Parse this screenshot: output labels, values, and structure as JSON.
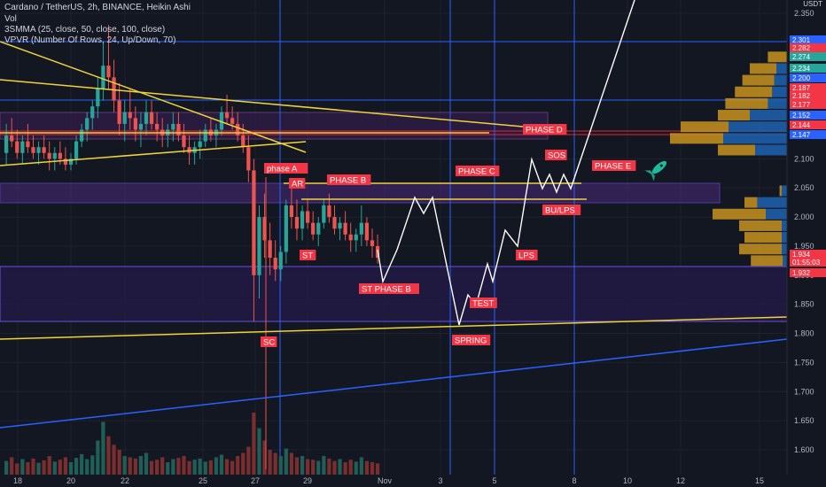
{
  "header": {
    "title": "Cardano / TetherUS, 2h, BINANCE, Heikin Ashi",
    "indicator_1": "Vol",
    "indicator_2": "3SMMA (25, close, 50, close, 100, close)",
    "indicator_3": "VPVR (Number Of Rows, 24, Up/Down, 70)",
    "currency": "USDT"
  },
  "colors": {
    "background": "#131722",
    "grid": "#1e222d",
    "up": "#26a69a",
    "down": "#ef5350",
    "trendline_yellow": "#f0d23c",
    "channel_blue": "#2962ff",
    "zone_purple": "#4b2a7a",
    "label_red": "#f23645",
    "axis_text": "#b2b5be"
  },
  "chart_data": {
    "type": "candlestick",
    "symbol": "ADAUSDT",
    "interval": "2h",
    "exchange": "BINANCE",
    "y_range": [
      1.58,
      2.36
    ],
    "y_ticks": [
      2.35,
      2.1,
      2.05,
      2.0,
      1.95,
      1.9,
      1.85,
      1.8,
      1.75,
      1.7,
      1.65,
      1.6
    ],
    "y_tick_labels": [
      "2.350",
      "2.100",
      "2.050",
      "2.000",
      "1.950",
      "1.900",
      "1.850",
      "1.800",
      "1.750",
      "1.700",
      "1.650",
      "1.600"
    ],
    "x_ticks": [
      "18",
      "20",
      "22",
      "25",
      "27",
      "29",
      "Nov",
      "3",
      "5",
      "8",
      "10",
      "12",
      "15"
    ],
    "price_tags": [
      {
        "label": "2.301",
        "value": 2.301,
        "color": "#2962ff"
      },
      {
        "label": "2.282",
        "value": 2.282,
        "color": "#f23645"
      },
      {
        "label": "2.274",
        "value": 2.274,
        "color": "#26a69a"
      },
      {
        "label": "2.234",
        "value": 2.234,
        "color": "#26a69a"
      },
      {
        "label": "2.200",
        "value": 2.2,
        "color": "#2962ff"
      },
      {
        "label": "2.187",
        "value": 2.187,
        "color": "#f23645"
      },
      {
        "label": "2.182",
        "value": 2.182,
        "color": "#f23645"
      },
      {
        "label": "2.177",
        "value": 2.177,
        "color": "#f23645"
      },
      {
        "label": "2.152",
        "value": 2.152,
        "color": "#2962ff"
      },
      {
        "label": "2.144",
        "value": 2.144,
        "color": "#f23645"
      },
      {
        "label": "2.147",
        "value": 2.147,
        "color": "#2962ff"
      },
      {
        "label": "1.934",
        "value": 1.934,
        "color": "#f23645"
      },
      {
        "label": "01:55:03",
        "value": 1.922,
        "color": "#f23645"
      },
      {
        "label": "1.932",
        "value": 1.912,
        "color": "#f23645"
      }
    ],
    "ohlc": [
      [
        2.11,
        2.16,
        2.09,
        2.14
      ],
      [
        2.14,
        2.17,
        2.12,
        2.13
      ],
      [
        2.13,
        2.15,
        2.1,
        2.11
      ],
      [
        2.11,
        2.14,
        2.09,
        2.13
      ],
      [
        2.13,
        2.16,
        2.11,
        2.12
      ],
      [
        2.12,
        2.14,
        2.1,
        2.11
      ],
      [
        2.11,
        2.13,
        2.09,
        2.12
      ],
      [
        2.12,
        2.14,
        2.1,
        2.11
      ],
      [
        2.11,
        2.13,
        2.08,
        2.1
      ],
      [
        2.1,
        2.12,
        2.08,
        2.11
      ],
      [
        2.11,
        2.13,
        2.09,
        2.1
      ],
      [
        2.1,
        2.12,
        2.08,
        2.09
      ],
      [
        2.09,
        2.11,
        2.08,
        2.1
      ],
      [
        2.1,
        2.14,
        2.09,
        2.13
      ],
      [
        2.13,
        2.16,
        2.12,
        2.15
      ],
      [
        2.15,
        2.18,
        2.13,
        2.17
      ],
      [
        2.17,
        2.2,
        2.15,
        2.19
      ],
      [
        2.19,
        2.24,
        2.17,
        2.22
      ],
      [
        2.22,
        2.3,
        2.2,
        2.26
      ],
      [
        2.26,
        2.33,
        2.22,
        2.24
      ],
      [
        2.24,
        2.27,
        2.18,
        2.2
      ],
      [
        2.2,
        2.23,
        2.14,
        2.16
      ],
      [
        2.16,
        2.2,
        2.13,
        2.18
      ],
      [
        2.18,
        2.22,
        2.15,
        2.17
      ],
      [
        2.17,
        2.19,
        2.13,
        2.15
      ],
      [
        2.15,
        2.18,
        2.12,
        2.16
      ],
      [
        2.16,
        2.2,
        2.14,
        2.18
      ],
      [
        2.18,
        2.2,
        2.15,
        2.16
      ],
      [
        2.16,
        2.18,
        2.13,
        2.15
      ],
      [
        2.15,
        2.17,
        2.12,
        2.14
      ],
      [
        2.14,
        2.16,
        2.12,
        2.15
      ],
      [
        2.15,
        2.18,
        2.13,
        2.16
      ],
      [
        2.16,
        2.18,
        2.13,
        2.14
      ],
      [
        2.14,
        2.16,
        2.11,
        2.12
      ],
      [
        2.12,
        2.14,
        2.09,
        2.11
      ],
      [
        2.11,
        2.13,
        2.09,
        2.12
      ],
      [
        2.12,
        2.15,
        2.1,
        2.13
      ],
      [
        2.13,
        2.16,
        2.12,
        2.15
      ],
      [
        2.15,
        2.17,
        2.13,
        2.14
      ],
      [
        2.14,
        2.16,
        2.12,
        2.15
      ],
      [
        2.15,
        2.19,
        2.14,
        2.18
      ],
      [
        2.18,
        2.21,
        2.16,
        2.17
      ],
      [
        2.17,
        2.19,
        2.15,
        2.16
      ],
      [
        2.16,
        2.18,
        2.13,
        2.14
      ],
      [
        2.14,
        2.16,
        2.11,
        2.12
      ],
      [
        2.12,
        2.14,
        2.06,
        2.08
      ],
      [
        2.08,
        2.1,
        1.82,
        1.9
      ],
      [
        1.9,
        2.02,
        1.86,
        2.0
      ],
      [
        2.0,
        2.04,
        1.93,
        1.96
      ],
      [
        1.96,
        1.99,
        1.9,
        1.93
      ],
      [
        1.93,
        1.96,
        1.89,
        1.91
      ],
      [
        1.91,
        1.95,
        1.89,
        1.94
      ],
      [
        1.94,
        2.03,
        1.92,
        2.02
      ],
      [
        2.02,
        2.06,
        1.98,
        2.0
      ],
      [
        2.0,
        2.03,
        1.96,
        1.98
      ],
      [
        1.98,
        2.02,
        1.96,
        2.01
      ],
      [
        2.01,
        2.03,
        1.98,
        1.99
      ],
      [
        1.99,
        2.01,
        1.96,
        1.97
      ],
      [
        1.97,
        2.0,
        1.95,
        1.99
      ],
      [
        1.99,
        2.03,
        1.98,
        2.02
      ],
      [
        2.02,
        2.04,
        1.99,
        2.0
      ],
      [
        2.0,
        2.02,
        1.97,
        1.98
      ],
      [
        1.98,
        2.0,
        1.96,
        1.99
      ],
      [
        1.99,
        2.01,
        1.96,
        1.97
      ],
      [
        1.97,
        1.99,
        1.94,
        1.96
      ],
      [
        1.96,
        1.98,
        1.94,
        1.97
      ],
      [
        1.97,
        2.02,
        1.95,
        1.99
      ],
      [
        1.99,
        2.0,
        1.95,
        1.96
      ],
      [
        1.96,
        1.98,
        1.93,
        1.95
      ],
      [
        1.95,
        1.97,
        1.92,
        1.93
      ]
    ],
    "volume": [
      0.22,
      0.28,
      0.18,
      0.25,
      0.2,
      0.26,
      0.19,
      0.23,
      0.3,
      0.21,
      0.24,
      0.28,
      0.2,
      0.27,
      0.33,
      0.25,
      0.31,
      0.55,
      0.85,
      0.62,
      0.48,
      0.4,
      0.3,
      0.28,
      0.26,
      0.3,
      0.35,
      0.22,
      0.24,
      0.28,
      0.2,
      0.25,
      0.27,
      0.3,
      0.22,
      0.24,
      0.26,
      0.21,
      0.23,
      0.28,
      0.32,
      0.25,
      0.22,
      0.3,
      0.35,
      0.45,
      1.0,
      0.75,
      0.55,
      0.4,
      0.35,
      0.3,
      0.42,
      0.35,
      0.28,
      0.3,
      0.25,
      0.24,
      0.22,
      0.3,
      0.26,
      0.22,
      0.25,
      0.2,
      0.24,
      0.21,
      0.28,
      0.22,
      0.2,
      0.18
    ],
    "vpvr_rows": [
      {
        "price": 2.275,
        "up": 0.0,
        "down": 0.18
      },
      {
        "price": 2.255,
        "up": 0.1,
        "down": 0.25
      },
      {
        "price": 2.235,
        "up": 0.12,
        "down": 0.3
      },
      {
        "price": 2.215,
        "up": 0.14,
        "down": 0.35
      },
      {
        "price": 2.195,
        "up": 0.18,
        "down": 0.4
      },
      {
        "price": 2.175,
        "up": 0.35,
        "down": 0.3
      },
      {
        "price": 2.155,
        "up": 0.55,
        "down": 0.45
      },
      {
        "price": 2.135,
        "up": 0.6,
        "down": 0.5
      },
      {
        "price": 2.115,
        "up": 0.3,
        "down": 0.35
      },
      {
        "price": 2.045,
        "up": 0.05,
        "down": 0.02
      },
      {
        "price": 2.025,
        "up": 0.28,
        "down": 0.12
      },
      {
        "price": 2.005,
        "up": 0.2,
        "down": 0.5
      },
      {
        "price": 1.985,
        "up": 0.05,
        "down": 0.4
      },
      {
        "price": 1.965,
        "up": 0.05,
        "down": 0.35
      },
      {
        "price": 1.945,
        "up": 0.05,
        "down": 0.4
      },
      {
        "price": 1.925,
        "up": 0.04,
        "down": 0.3
      }
    ],
    "annotations": [
      {
        "label": "PHASE D",
        "style": "red"
      },
      {
        "label": "phase A",
        "style": "red"
      },
      {
        "label": "AR",
        "style": "red"
      },
      {
        "label": "PHASE B",
        "style": "red"
      },
      {
        "label": "PHASE C",
        "style": "red"
      },
      {
        "label": "PHASE E",
        "style": "red"
      },
      {
        "label": "SOS",
        "style": "red"
      },
      {
        "label": "BU/LPS",
        "style": "red"
      },
      {
        "label": "ST",
        "style": "red"
      },
      {
        "label": "ST PHASE B",
        "style": "red"
      },
      {
        "label": "LPS",
        "style": "red"
      },
      {
        "label": "TEST",
        "style": "red"
      },
      {
        "label": "SPRING",
        "style": "red"
      },
      {
        "label": "SC",
        "style": "red"
      }
    ],
    "projection_path": [
      [
        0,
        1.935
      ],
      [
        1,
        1.88
      ],
      [
        2,
        1.935
      ],
      [
        3,
        2.03
      ],
      [
        4,
        2.0
      ],
      [
        5,
        2.03
      ],
      [
        6,
        1.8
      ],
      [
        7,
        1.88
      ],
      [
        8,
        1.855
      ],
      [
        9,
        1.9
      ],
      [
        10,
        1.87
      ],
      [
        11,
        1.96
      ],
      [
        12,
        1.94
      ],
      [
        13,
        2.1
      ],
      [
        14,
        2.05
      ],
      [
        15,
        2.08
      ],
      [
        16,
        2.045
      ],
      [
        17,
        2.09
      ],
      [
        18,
        2.045
      ],
      [
        19,
        2.36
      ]
    ],
    "indicator": "rocket-icon",
    "grid": true
  }
}
